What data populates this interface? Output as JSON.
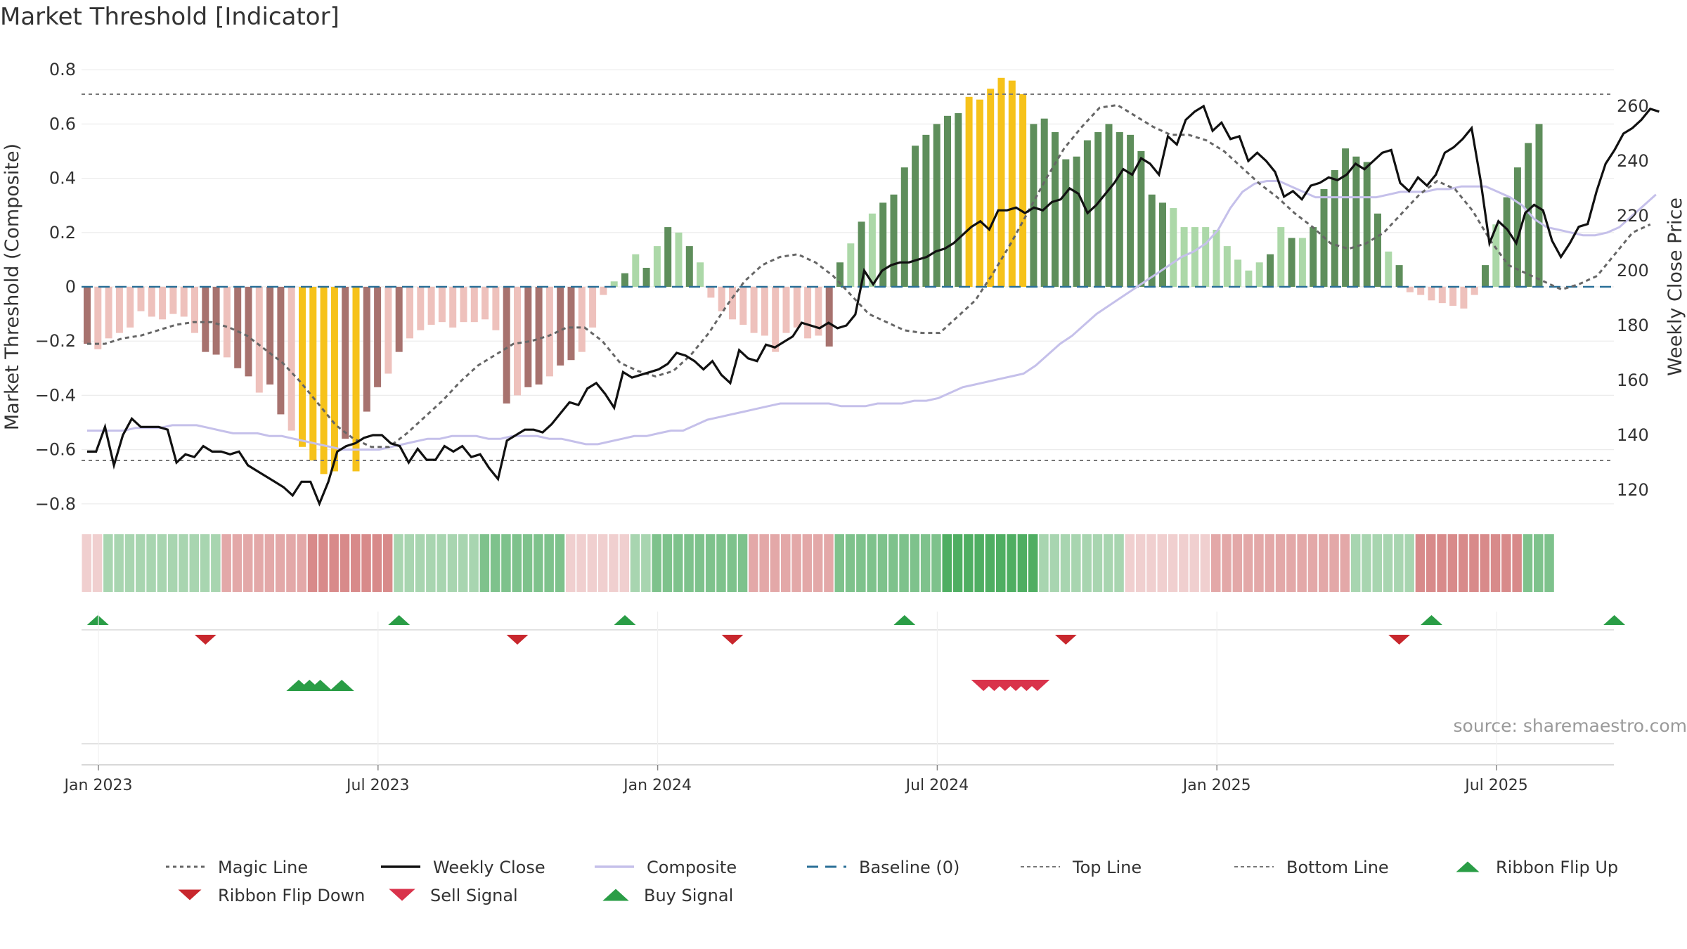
{
  "title": "Market Threshold [Indicator]",
  "source": "source: sharemaestro.com",
  "colors": {
    "magic_line": "#666666",
    "weekly_close": "#111111",
    "composite": "#c5c0ea",
    "baseline": "#2a6f97",
    "threshold_line": "#777777",
    "bar_pos_light": "#acd8a8",
    "bar_pos_dark": "#5e8e5b",
    "bar_neg_light": "#eec1bc",
    "bar_neg_dark": "#a7726e",
    "bar_extreme": "#f6c21a",
    "buy": "#2a9d46",
    "sell": "#d9334b"
  },
  "chart_data": {
    "type": "bar",
    "title": "Market Threshold [Indicator]",
    "ylabel_left": "Market Threshold (Composite)",
    "ylabel_right": "Weekly Close Price",
    "ylim_left": [
      -0.8,
      0.8
    ],
    "ylim_right": [
      120,
      260
    ],
    "yticks_left": [
      "0.8",
      "0.6",
      "0.4",
      "0.2",
      "0",
      "−0.2",
      "−0.4",
      "−0.6",
      "−0.8"
    ],
    "yticks_right": [
      "260",
      "240",
      "220",
      "200",
      "180",
      "160",
      "140",
      "120"
    ],
    "xticks": [
      "Jan 2023",
      "Jul 2023",
      "Jan 2024",
      "Jul 2024",
      "Jan 2025",
      "Jul 2025"
    ],
    "top_line": 0.71,
    "bottom_line": -0.64,
    "grid": true,
    "legend_position": "bottom",
    "legend": [
      "Magic Line",
      "Weekly Close",
      "Composite",
      "Baseline (0)",
      "Top Line",
      "Bottom Line",
      "Ribbon Flip Up",
      "Ribbon Flip Down",
      "Sell Signal",
      "Buy Signal"
    ],
    "series": [
      {
        "name": "Weekly Close",
        "axis": "right",
        "x_start": "2023-01-02",
        "interval_weeks": 1,
        "values": [
          134,
          134,
          143,
          129,
          140,
          146,
          143,
          143,
          143,
          142,
          130,
          133,
          132,
          136,
          134,
          134,
          133,
          134,
          129,
          127,
          125,
          123,
          121,
          118,
          123,
          123,
          115,
          123,
          134,
          136,
          137,
          139,
          140,
          140,
          137,
          136,
          130,
          135,
          131,
          131,
          136,
          134,
          136,
          132,
          133,
          128,
          124,
          138,
          140,
          142,
          142,
          141,
          144,
          148,
          152,
          151,
          157,
          159,
          155,
          150,
          163,
          161,
          162,
          163,
          164,
          166,
          170,
          169,
          167,
          164,
          167,
          162,
          159,
          171,
          168,
          167,
          173,
          172,
          174,
          176,
          181,
          180,
          179,
          181,
          179,
          180,
          184,
          200,
          195,
          200,
          202,
          203,
          203,
          204,
          205,
          207,
          208,
          210,
          213,
          216,
          218,
          215,
          222,
          222,
          223,
          221,
          223,
          222,
          225,
          226,
          230,
          228,
          221,
          224,
          228,
          232,
          237,
          235,
          241,
          239,
          235,
          249,
          246,
          255,
          258,
          260,
          251,
          254,
          248,
          249,
          240,
          243,
          240,
          236,
          227,
          229,
          226,
          231,
          232,
          234,
          233,
          235,
          239,
          237,
          240,
          243,
          244,
          232,
          229,
          234,
          231,
          235,
          243,
          245,
          248,
          252,
          233,
          210,
          218,
          215,
          210,
          221,
          224,
          222,
          211,
          205,
          210,
          216,
          217,
          229,
          239,
          244,
          250,
          252,
          255,
          259,
          258
        ]
      },
      {
        "name": "Composite",
        "axis": "left",
        "values": [
          -0.53,
          -0.53,
          -0.53,
          -0.53,
          -0.52,
          -0.52,
          -0.52,
          -0.51,
          -0.51,
          -0.51,
          -0.52,
          -0.53,
          -0.54,
          -0.54,
          -0.54,
          -0.55,
          -0.55,
          -0.56,
          -0.57,
          -0.58,
          -0.59,
          -0.6,
          -0.6,
          -0.6,
          -0.6,
          -0.59,
          -0.58,
          -0.57,
          -0.56,
          -0.56,
          -0.55,
          -0.55,
          -0.55,
          -0.56,
          -0.56,
          -0.55,
          -0.55,
          -0.55,
          -0.56,
          -0.56,
          -0.57,
          -0.58,
          -0.58,
          -0.57,
          -0.56,
          -0.55,
          -0.55,
          -0.54,
          -0.53,
          -0.53,
          -0.51,
          -0.49,
          -0.48,
          -0.47,
          -0.46,
          -0.45,
          -0.44,
          -0.43,
          -0.43,
          -0.43,
          -0.43,
          -0.43,
          -0.44,
          -0.44,
          -0.44,
          -0.43,
          -0.43,
          -0.43,
          -0.42,
          -0.42,
          -0.41,
          -0.39,
          -0.37,
          -0.36,
          -0.35,
          -0.34,
          -0.33,
          -0.32,
          -0.29,
          -0.25,
          -0.21,
          -0.18,
          -0.14,
          -0.1,
          -0.07,
          -0.04,
          -0.01,
          0.02,
          0.05,
          0.08,
          0.11,
          0.13,
          0.16,
          0.21,
          0.29,
          0.35,
          0.38,
          0.39,
          0.39,
          0.37,
          0.35,
          0.33,
          0.33,
          0.33,
          0.33,
          0.33,
          0.33,
          0.34,
          0.35,
          0.35,
          0.35,
          0.36,
          0.36,
          0.37,
          0.37,
          0.37,
          0.35,
          0.33,
          0.3,
          0.25,
          0.22,
          0.21,
          0.2,
          0.19,
          0.19,
          0.2,
          0.22,
          0.26,
          0.3,
          0.34
        ]
      },
      {
        "name": "Magic Line",
        "axis": "left",
        "values": [
          -0.21,
          -0.21,
          -0.19,
          -0.18,
          -0.16,
          -0.14,
          -0.13,
          -0.13,
          -0.15,
          -0.18,
          -0.23,
          -0.28,
          -0.35,
          -0.43,
          -0.51,
          -0.56,
          -0.59,
          -0.59,
          -0.54,
          -0.48,
          -0.42,
          -0.35,
          -0.29,
          -0.25,
          -0.21,
          -0.2,
          -0.18,
          -0.15,
          -0.15,
          -0.2,
          -0.28,
          -0.31,
          -0.33,
          -0.31,
          -0.25,
          -0.17,
          -0.07,
          0.02,
          0.08,
          0.11,
          0.12,
          0.09,
          0.04,
          -0.03,
          -0.1,
          -0.13,
          -0.16,
          -0.17,
          -0.17,
          -0.11,
          -0.05,
          0.05,
          0.16,
          0.28,
          0.4,
          0.51,
          0.59,
          0.66,
          0.67,
          0.63,
          0.59,
          0.56,
          0.56,
          0.54,
          0.5,
          0.44,
          0.38,
          0.33,
          0.27,
          0.22,
          0.16,
          0.14,
          0.16,
          0.2,
          0.27,
          0.34,
          0.39,
          0.36,
          0.28,
          0.17,
          0.08,
          0.05,
          0.02,
          -0.01,
          0.01,
          0.04,
          0.12,
          0.2,
          0.23
        ]
      }
    ],
    "composite_bars": [
      -0.21,
      -0.23,
      -0.19,
      -0.17,
      -0.15,
      -0.09,
      -0.11,
      -0.12,
      -0.1,
      -0.11,
      -0.17,
      -0.24,
      -0.25,
      -0.26,
      -0.3,
      -0.33,
      -0.39,
      -0.36,
      -0.47,
      -0.53,
      -0.59,
      -0.64,
      -0.69,
      -0.68,
      -0.56,
      -0.68,
      -0.46,
      -0.37,
      -0.32,
      -0.24,
      -0.19,
      -0.16,
      -0.14,
      -0.13,
      -0.15,
      -0.13,
      -0.13,
      -0.12,
      -0.16,
      -0.43,
      -0.4,
      -0.37,
      -0.36,
      -0.33,
      -0.29,
      -0.27,
      -0.24,
      -0.15,
      -0.03,
      0.02,
      0.05,
      0.12,
      0.07,
      0.15,
      0.22,
      0.2,
      0.15,
      0.09,
      -0.04,
      -0.09,
      -0.12,
      -0.14,
      -0.17,
      -0.18,
      -0.24,
      -0.17,
      -0.15,
      -0.19,
      -0.18,
      -0.22,
      0.09,
      0.16,
      0.24,
      0.27,
      0.31,
      0.34,
      0.44,
      0.52,
      0.56,
      0.6,
      0.63,
      0.64,
      0.7,
      0.69,
      0.73,
      0.77,
      0.76,
      0.71,
      0.6,
      0.62,
      0.57,
      0.47,
      0.48,
      0.54,
      0.57,
      0.6,
      0.57,
      0.56,
      0.5,
      0.34,
      0.31,
      0.29,
      0.22,
      0.22,
      0.22,
      0.21,
      0.15,
      0.1,
      0.06,
      0.09,
      0.12,
      0.22,
      0.18,
      0.18,
      0.22,
      0.36,
      0.43,
      0.51,
      0.48,
      0.46,
      0.27,
      0.13,
      0.08,
      -0.02,
      -0.03,
      -0.05,
      -0.06,
      -0.07,
      -0.08,
      -0.03,
      0.08,
      0.23,
      0.33,
      0.44,
      0.53,
      0.6
    ],
    "ribbon": [
      {
        "weeks": 2,
        "tone": "neg-1"
      },
      {
        "weeks": 11,
        "tone": "pos-1"
      },
      {
        "weeks": 8,
        "tone": "neg-2"
      },
      {
        "weeks": 8,
        "tone": "neg-3"
      },
      {
        "weeks": 8,
        "tone": "pos-1"
      },
      {
        "weeks": 8,
        "tone": "pos-2"
      },
      {
        "weeks": 6,
        "tone": "neg-1"
      },
      {
        "weeks": 2,
        "tone": "pos-1"
      },
      {
        "weeks": 9,
        "tone": "pos-2"
      },
      {
        "weeks": 8,
        "tone": "neg-2"
      },
      {
        "weeks": 10,
        "tone": "pos-2"
      },
      {
        "weeks": 9,
        "tone": "pos-3"
      },
      {
        "weeks": 8,
        "tone": "pos-1"
      },
      {
        "weeks": 8,
        "tone": "neg-1"
      },
      {
        "weeks": 13,
        "tone": "neg-2"
      },
      {
        "weeks": 6,
        "tone": "pos-1"
      },
      {
        "weeks": 10,
        "tone": "neg-3"
      },
      {
        "weeks": 3,
        "tone": "pos-2"
      }
    ],
    "ribbon_flip_up_weeks": [
      1,
      29,
      50,
      76,
      125,
      142
    ],
    "ribbon_flip_down_weeks": [
      11,
      40,
      60,
      91,
      122
    ],
    "buy_signal_weeks": [
      20,
      21,
      22,
      24
    ],
    "sell_signal_weeks": [
      84,
      85,
      86,
      87,
      88,
      89
    ]
  }
}
